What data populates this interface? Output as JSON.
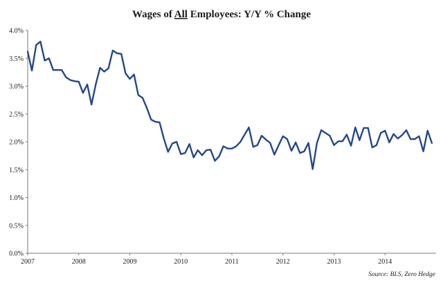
{
  "chart_data": {
    "type": "line",
    "title": {
      "before": "Wages of ",
      "underlined": "All",
      "after": " Employees: Y/Y % Change"
    },
    "source": "Source: BLS, Zero Hedge",
    "xlabel": "",
    "ylabel": "",
    "xlim": [
      2007,
      2015
    ],
    "ylim": [
      0,
      4
    ],
    "grid": false,
    "legend": "none",
    "x_ticks": [
      2007,
      2008,
      2009,
      2010,
      2011,
      2012,
      2013,
      2014
    ],
    "x_tick_labels": [
      "2007",
      "2008",
      "2009",
      "2010",
      "2011",
      "2012",
      "2013",
      "2014"
    ],
    "y_ticks": [
      0,
      0.5,
      1,
      1.5,
      2,
      2.5,
      3,
      3.5,
      4
    ],
    "y_tick_labels": [
      "0.0%",
      "0.5%",
      "1.0%",
      "1.5%",
      "2.0%",
      "2.5%",
      "3.0%",
      "3.5%",
      "4.0%"
    ],
    "colors": {
      "line": "#23478a",
      "axis": "#7a7a7a"
    },
    "series": [
      {
        "x": [
          2007.0,
          2007.083,
          2007.167,
          2007.25,
          2007.333,
          2007.417,
          2007.5,
          2007.583,
          2007.667,
          2007.75,
          2007.833,
          2007.917,
          2008.0,
          2008.083,
          2008.167,
          2008.25,
          2008.333,
          2008.417,
          2008.5,
          2008.583,
          2008.667,
          2008.75,
          2008.833,
          2008.917,
          2009.0,
          2009.083,
          2009.167,
          2009.25,
          2009.333,
          2009.417,
          2009.5,
          2009.583,
          2009.667,
          2009.75,
          2009.833,
          2009.917,
          2010.0,
          2010.083,
          2010.167,
          2010.25,
          2010.333,
          2010.417,
          2010.5,
          2010.583,
          2010.667,
          2010.75,
          2010.833,
          2010.917,
          2011.0,
          2011.083,
          2011.167,
          2011.25,
          2011.333,
          2011.417,
          2011.5,
          2011.583,
          2011.667,
          2011.75,
          2011.833,
          2011.917,
          2012.0,
          2012.083,
          2012.167,
          2012.25,
          2012.333,
          2012.417,
          2012.5,
          2012.583,
          2012.667,
          2012.75,
          2012.833,
          2012.917,
          2013.0,
          2013.083,
          2013.167,
          2013.25,
          2013.333,
          2013.417,
          2013.5,
          2013.583,
          2013.667,
          2013.75,
          2013.833,
          2013.917,
          2014.0,
          2014.083,
          2014.167,
          2014.25,
          2014.333,
          2014.417,
          2014.5,
          2014.583,
          2014.667,
          2014.75,
          2014.833,
          2014.917
        ],
        "values": [
          3.62,
          3.28,
          3.74,
          3.8,
          3.46,
          3.5,
          3.29,
          3.29,
          3.29,
          3.16,
          3.11,
          3.09,
          3.08,
          2.88,
          3.03,
          2.67,
          3.03,
          3.33,
          3.26,
          3.32,
          3.64,
          3.59,
          3.58,
          3.23,
          3.13,
          3.21,
          2.84,
          2.79,
          2.61,
          2.4,
          2.36,
          2.35,
          2.06,
          1.82,
          1.97,
          2.0,
          1.78,
          1.8,
          1.96,
          1.72,
          1.85,
          1.76,
          1.85,
          1.86,
          1.66,
          1.74,
          1.92,
          1.88,
          1.88,
          1.92,
          2.0,
          2.13,
          2.26,
          1.91,
          1.94,
          2.11,
          2.04,
          1.98,
          1.77,
          1.94,
          2.1,
          2.05,
          1.84,
          1.99,
          1.8,
          1.83,
          1.98,
          1.51,
          1.98,
          2.21,
          2.16,
          2.11,
          1.94,
          2.01,
          2.01,
          2.13,
          1.93,
          2.26,
          2.03,
          2.25,
          2.25,
          1.9,
          1.94,
          2.16,
          2.2,
          1.99,
          2.14,
          2.06,
          2.12,
          2.21,
          2.05,
          2.05,
          2.1,
          1.83,
          2.2,
          1.98
        ]
      }
    ]
  }
}
